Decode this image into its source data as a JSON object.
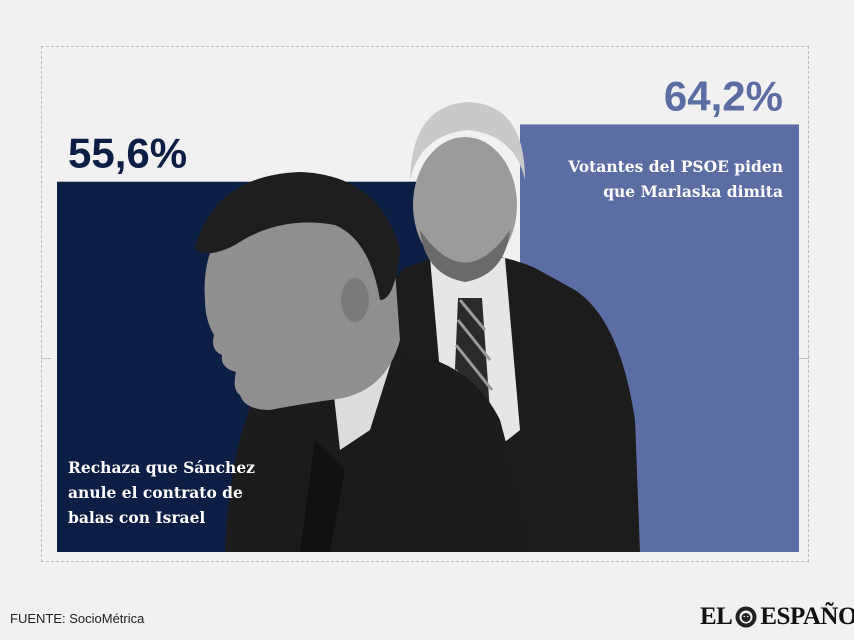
{
  "chart_data": {
    "type": "bar",
    "ylim": [
      0,
      100
    ],
    "series": [
      {
        "value": 55.6,
        "value_label": "55,6%",
        "label_lines": [
          "Rechaza que Sánchez",
          "anule el contrato de",
          "balas con Israel"
        ],
        "color": "#0d1e45",
        "text_color": "#ffffff",
        "value_color": "#0d1e45"
      },
      {
        "value": 64.2,
        "value_label": "64,2%",
        "label_lines": [
          "Votantes del PSOE piden",
          "que Marlaska dimita"
        ],
        "color": "#5c6da3",
        "text_color": "#ffffff",
        "value_color": "#5c6da3"
      }
    ]
  },
  "footer": {
    "source": "FUENTE: SocioMétrica",
    "logo_left": "EL",
    "logo_right": "ESPAÑOL"
  },
  "images": {
    "left": "photo-of-man-in-profile",
    "right": "photo-of-gray-haired-man"
  }
}
